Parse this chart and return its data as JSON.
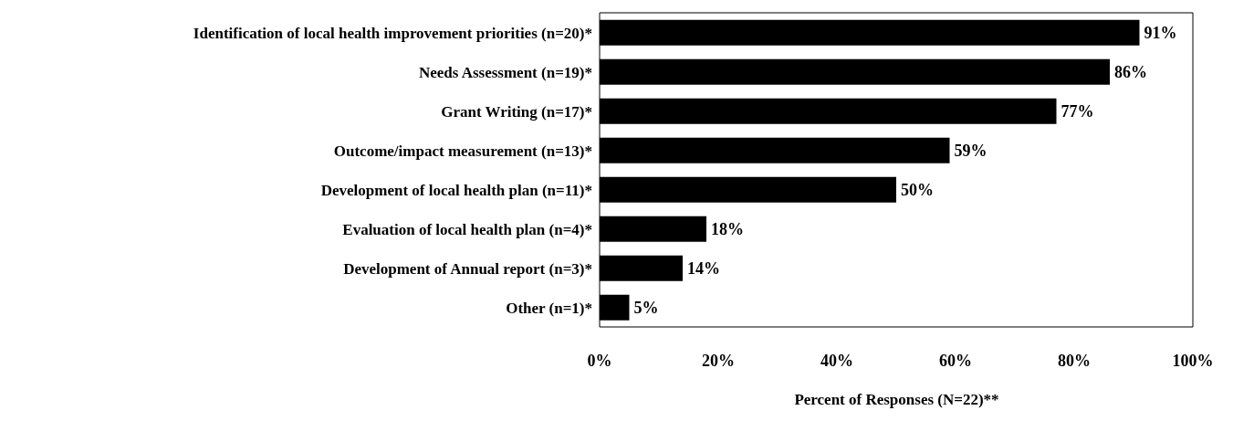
{
  "chart_data": {
    "type": "bar",
    "orientation": "horizontal",
    "categories": [
      "Identification of local health improvement priorities (n=20)*",
      "Needs Assessment (n=19)*",
      "Grant Writing (n=17)*",
      "Outcome/impact measurement (n=13)*",
      "Development of local health plan (n=11)*",
      "Evaluation of local health plan (n=4)*",
      "Development of Annual report (n=3)*",
      "Other (n=1)*"
    ],
    "values": [
      91,
      86,
      77,
      59,
      50,
      18,
      14,
      5
    ],
    "value_labels": [
      "91%",
      "86%",
      "77%",
      "59%",
      "50%",
      "18%",
      "14%",
      "5%"
    ],
    "color": "#000000",
    "xlabel": "Percent of Responses (N=22)**",
    "xlim": [
      0,
      100
    ],
    "xticks": [
      {
        "value": 0,
        "label": "0%"
      },
      {
        "value": 20,
        "label": "20%"
      },
      {
        "value": 40,
        "label": "40%"
      },
      {
        "value": 60,
        "label": "60%"
      },
      {
        "value": 80,
        "label": "80%"
      },
      {
        "value": 100,
        "label": "100%"
      }
    ],
    "grid": false,
    "legend": false
  }
}
